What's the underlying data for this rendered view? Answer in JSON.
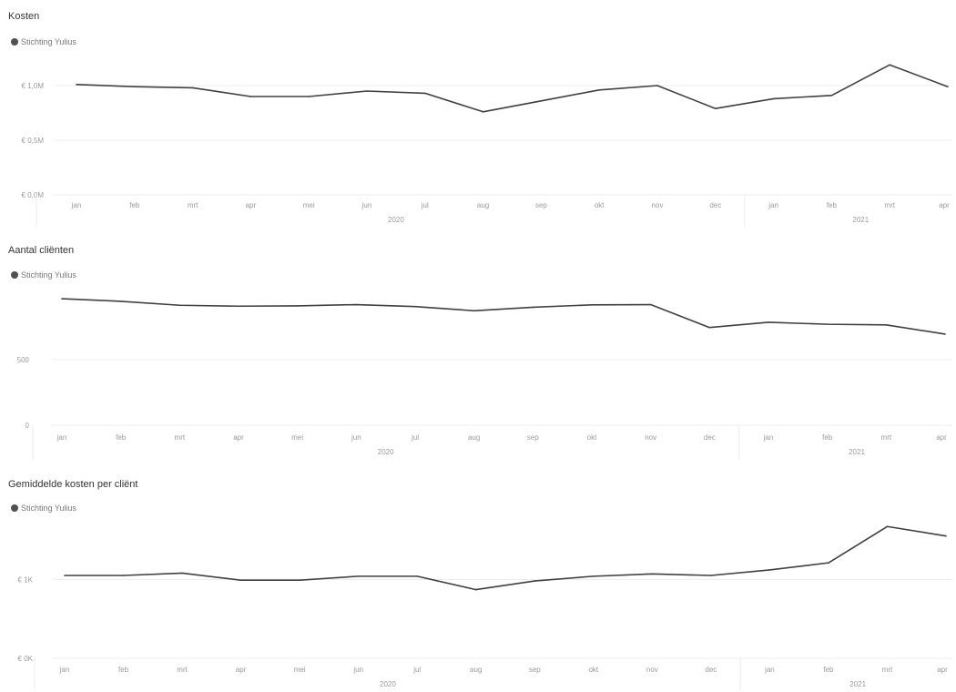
{
  "colors": {
    "line": "#404040",
    "grid": "#ececec",
    "axis_text": "#9a9a9a",
    "title": "#333333"
  },
  "chart_data": [
    {
      "type": "line",
      "title": "Kosten",
      "legend": "Stichting Yulius",
      "categories": [
        "jan",
        "feb",
        "mrt",
        "apr",
        "mei",
        "jun",
        "jul",
        "aug",
        "sep",
        "okt",
        "nov",
        "dec",
        "jan",
        "feb",
        "mrt",
        "apr"
      ],
      "years": [
        {
          "label": "2020",
          "span": [
            0,
            11
          ]
        },
        {
          "label": "2021",
          "span": [
            12,
            15
          ]
        }
      ],
      "series": [
        {
          "name": "Stichting Yulius",
          "values": [
            1.01,
            0.99,
            0.98,
            0.9,
            0.9,
            0.95,
            0.93,
            0.76,
            0.86,
            0.96,
            1.0,
            0.79,
            0.88,
            0.91,
            1.19,
            0.99
          ]
        }
      ],
      "ylim": [
        0,
        1.2
      ],
      "yticks": [
        {
          "value": 1.0,
          "label": "€ 1,0M"
        },
        {
          "value": 0.5,
          "label": "€ 0,5M"
        },
        {
          "value": 0,
          "label": "€ 0,0M"
        }
      ]
    },
    {
      "type": "line",
      "title": "Aantal cliënten",
      "legend": "Stichting Yulius",
      "categories": [
        "jan",
        "feb",
        "mrt",
        "apr",
        "mei",
        "jun",
        "jul",
        "aug",
        "sep",
        "okt",
        "nov",
        "dec",
        "jan",
        "feb",
        "mrt",
        "apr"
      ],
      "years": [
        {
          "label": "2020",
          "span": [
            0,
            11
          ]
        },
        {
          "label": "2021",
          "span": [
            12,
            15
          ]
        }
      ],
      "series": [
        {
          "name": "Stichting Yulius",
          "values": [
            965,
            945,
            915,
            908,
            910,
            920,
            905,
            873,
            900,
            918,
            920,
            745,
            785,
            770,
            765,
            695
          ]
        }
      ],
      "ylim": [
        0,
        1000
      ],
      "yticks": [
        {
          "value": 500,
          "label": "500"
        },
        {
          "value": 0,
          "label": "0"
        }
      ]
    },
    {
      "type": "line",
      "title": "Gemiddelde kosten per cliënt",
      "legend": "Stichting Yulius",
      "categories": [
        "jan",
        "feb",
        "mrt",
        "apr",
        "mei",
        "jun",
        "jul",
        "aug",
        "sep",
        "okt",
        "nov",
        "dec",
        "jan",
        "feb",
        "mrt",
        "apr"
      ],
      "years": [
        {
          "label": "2020",
          "span": [
            0,
            11
          ]
        },
        {
          "label": "2021",
          "span": [
            12,
            15
          ]
        }
      ],
      "series": [
        {
          "name": "Stichting Yulius",
          "values": [
            1.05,
            1.05,
            1.08,
            0.99,
            0.99,
            1.04,
            1.04,
            0.87,
            0.98,
            1.04,
            1.07,
            1.05,
            1.12,
            1.21,
            1.67,
            1.55
          ]
        }
      ],
      "ylim": [
        0,
        1.8
      ],
      "yticks": [
        {
          "value": 1.0,
          "label": "€ 1K"
        },
        {
          "value": 0,
          "label": "€ 0K"
        }
      ]
    }
  ]
}
